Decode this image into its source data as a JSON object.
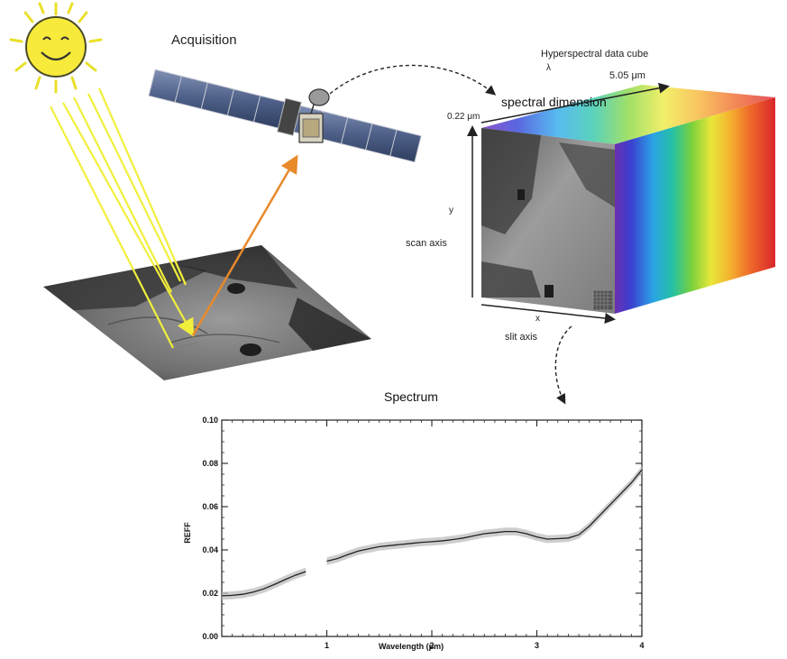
{
  "labels": {
    "acquisition": "Acquisition",
    "hypercube_title": "Hyperspectral data cube",
    "lambda": "λ",
    "wl_end": "5.05 μm",
    "wl_start": "0.22 μm",
    "spectral_dimension": "spectral dimension",
    "y": "y",
    "scan_axis": "scan axis",
    "x": "x",
    "slit_axis": "slit axis",
    "spectrum_title": "Spectrum"
  },
  "colors": {
    "sun": "#f7ea3a",
    "sun_rays": "#e8e02a",
    "light_beams": "#f2ef3c",
    "reflect_arrow": "#e8892a",
    "panel": "#5a6f95",
    "spectrum_line": "#222222",
    "spectrum_band": "#bdbdbd"
  },
  "chart_data": {
    "type": "line",
    "title": "Spectrum",
    "xlabel": "Wavelength (μm)",
    "ylabel": "REFF",
    "xlim": [
      0.0,
      4.0
    ],
    "ylim": [
      0.0,
      0.1
    ],
    "x_ticks": [
      1,
      2,
      3,
      4
    ],
    "x_tick_labels": [
      "1",
      "2",
      "3",
      "4"
    ],
    "y_ticks": [
      0.0,
      0.02,
      0.04,
      0.06,
      0.08,
      0.1
    ],
    "y_tick_labels": [
      "0.00",
      "0.02",
      "0.04",
      "0.06",
      "0.08",
      "0.10"
    ],
    "grid": false,
    "series": [
      {
        "segment": "short",
        "x": [
          0.0,
          0.1,
          0.2,
          0.3,
          0.4,
          0.5,
          0.6,
          0.7,
          0.8
        ],
        "y": [
          0.0188,
          0.019,
          0.0195,
          0.0205,
          0.022,
          0.024,
          0.0262,
          0.0283,
          0.03
        ]
      },
      {
        "segment": "long",
        "x": [
          1.0,
          1.1,
          1.2,
          1.3,
          1.4,
          1.5,
          1.6,
          1.7,
          1.8,
          1.9,
          2.0,
          2.1,
          2.2,
          2.3,
          2.4,
          2.5,
          2.6,
          2.7,
          2.8,
          2.9,
          3.0,
          3.1,
          3.2,
          3.3,
          3.4,
          3.5,
          3.6,
          3.7,
          3.8,
          3.9,
          4.0
        ],
        "y": [
          0.0348,
          0.036,
          0.0378,
          0.0395,
          0.0405,
          0.0415,
          0.042,
          0.0425,
          0.043,
          0.0435,
          0.0438,
          0.0442,
          0.0448,
          0.0455,
          0.0465,
          0.0475,
          0.048,
          0.0485,
          0.0485,
          0.0475,
          0.046,
          0.045,
          0.0452,
          0.0455,
          0.047,
          0.051,
          0.056,
          0.061,
          0.066,
          0.071,
          0.077
        ]
      }
    ]
  }
}
